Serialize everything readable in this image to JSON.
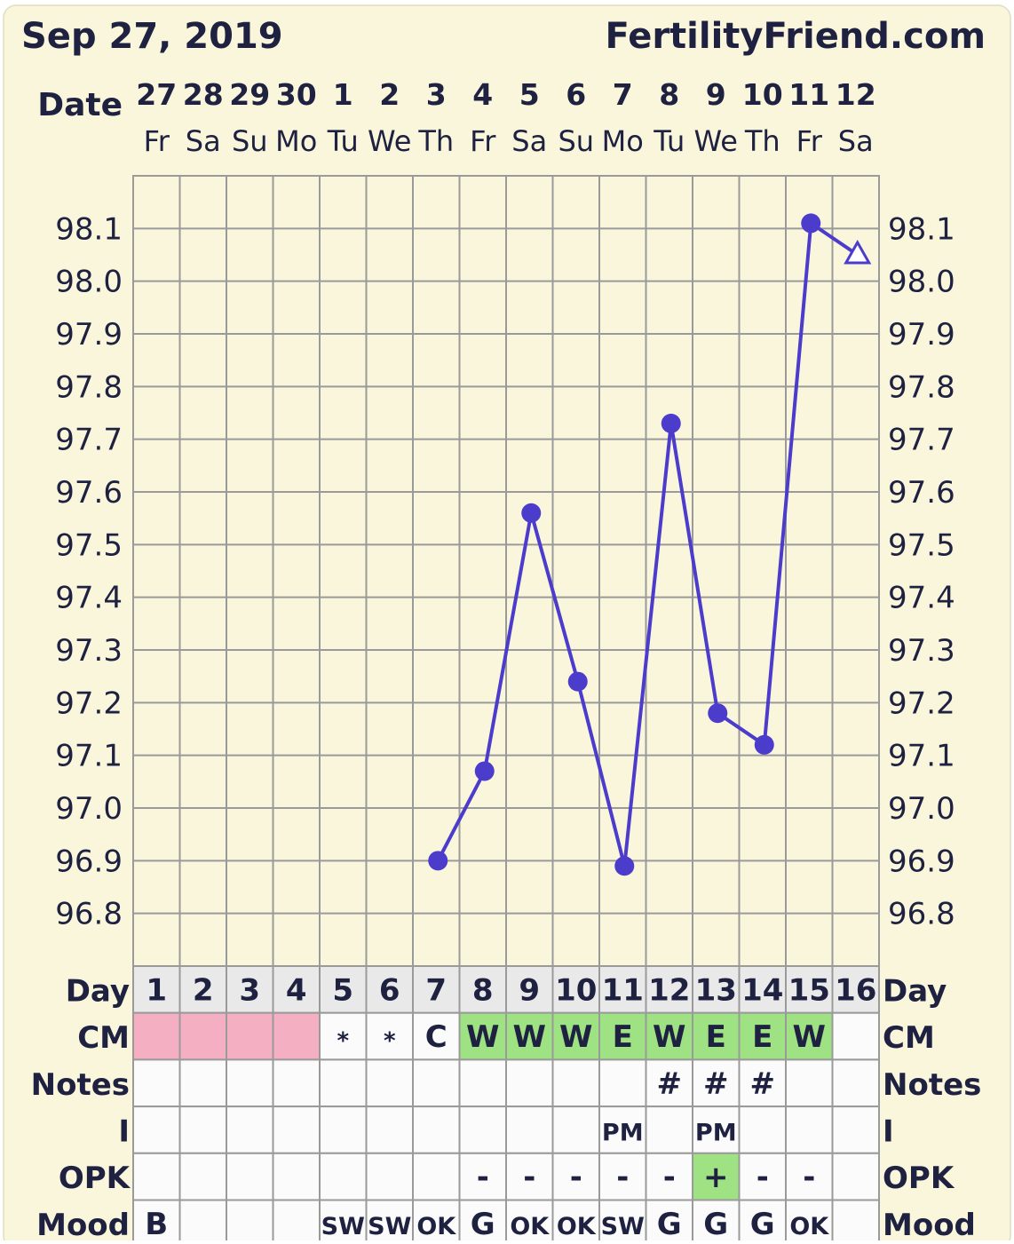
{
  "header": {
    "date": "Sep 27, 2019",
    "site": "FertilityFriend.com"
  },
  "colors": {
    "panel": "#faf6dc",
    "panel_border": "#e2dcc0",
    "grid": "#9a9a9a",
    "line": "#4b3ccc",
    "text": "#1e2140",
    "menstruation": "#f4b0c2",
    "fertile": "#9ee283",
    "day_cell": "#e9e9e9",
    "cell": "#fbfbfb"
  },
  "chart_data": {
    "type": "line",
    "title": "",
    "date_row_label": "Date",
    "dates": [
      "27",
      "28",
      "29",
      "30",
      "1",
      "2",
      "3",
      "4",
      "5",
      "6",
      "7",
      "8",
      "9",
      "10",
      "11",
      "12"
    ],
    "weekdays": [
      "Fr",
      "Sa",
      "Su",
      "Mo",
      "Tu",
      "We",
      "Th",
      "Fr",
      "Sa",
      "Su",
      "Mo",
      "Tu",
      "We",
      "Th",
      "Fr",
      "Sa"
    ],
    "y_ticks": [
      "98.1",
      "98.0",
      "97.9",
      "97.8",
      "97.7",
      "97.6",
      "97.5",
      "97.4",
      "97.3",
      "97.2",
      "97.1",
      "97.0",
      "96.9",
      "96.8"
    ],
    "ylim": [
      96.7,
      98.2
    ],
    "series": [
      {
        "values": [
          null,
          null,
          null,
          null,
          null,
          null,
          96.9,
          97.07,
          97.56,
          97.24,
          96.89,
          97.73,
          97.18,
          97.12,
          98.11,
          98.05
        ],
        "markers": [
          "none",
          "none",
          "none",
          "none",
          "none",
          "none",
          "dot",
          "dot",
          "dot",
          "dot",
          "dot",
          "dot",
          "dot",
          "dot",
          "dot",
          "triangle"
        ]
      }
    ],
    "rows": [
      {
        "label": "Day",
        "cells": [
          "1",
          "2",
          "3",
          "4",
          "5",
          "6",
          "7",
          "8",
          "9",
          "10",
          "11",
          "12",
          "13",
          "14",
          "15",
          "16"
        ]
      },
      {
        "label": "CM",
        "cells": [
          "",
          "",
          "",
          "",
          "*",
          "*",
          "C",
          "W",
          "W",
          "W",
          "E",
          "W",
          "E",
          "E",
          "W",
          ""
        ],
        "highlight": [
          "menstruation",
          "menstruation",
          "menstruation",
          "menstruation",
          "",
          "",
          "",
          "fertile",
          "fertile",
          "fertile",
          "fertile",
          "fertile",
          "fertile",
          "fertile",
          "fertile",
          ""
        ]
      },
      {
        "label": "Notes",
        "cells": [
          "",
          "",
          "",
          "",
          "",
          "",
          "",
          "",
          "",
          "",
          "",
          "#",
          "#",
          "#",
          "",
          ""
        ]
      },
      {
        "label": "I",
        "cells": [
          "",
          "",
          "",
          "",
          "",
          "",
          "",
          "",
          "",
          "",
          "PM",
          "",
          "PM",
          "",
          "",
          ""
        ]
      },
      {
        "label": "OPK",
        "cells": [
          "",
          "",
          "",
          "",
          "",
          "",
          "",
          "-",
          "-",
          "-",
          "-",
          "-",
          "+",
          "-",
          "-",
          ""
        ],
        "highlight": [
          "",
          "",
          "",
          "",
          "",
          "",
          "",
          "",
          "",
          "",
          "",
          "",
          "fertile",
          "",
          "",
          ""
        ]
      },
      {
        "label": "Mood",
        "cells": [
          "B",
          "",
          "",
          "",
          "SW",
          "SW",
          "OK",
          "G",
          "OK",
          "OK",
          "SW",
          "G",
          "G",
          "G",
          "OK",
          ""
        ]
      }
    ]
  }
}
